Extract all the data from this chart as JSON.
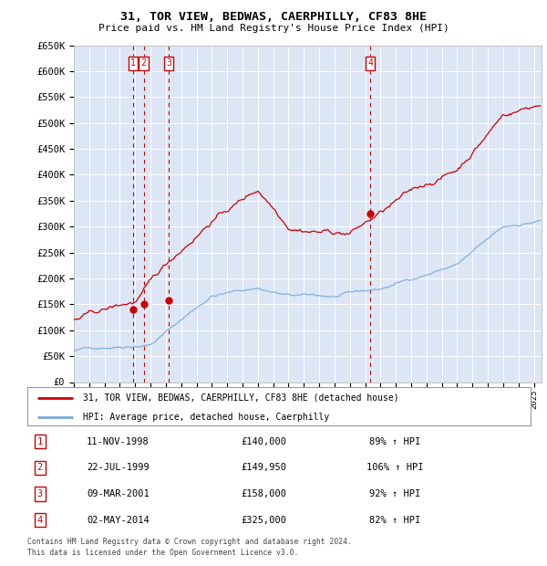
{
  "title": "31, TOR VIEW, BEDWAS, CAERPHILLY, CF83 8HE",
  "subtitle": "Price paid vs. HM Land Registry's House Price Index (HPI)",
  "legend_property": "31, TOR VIEW, BEDWAS, CAERPHILLY, CF83 8HE (detached house)",
  "legend_hpi": "HPI: Average price, detached house, Caerphilly",
  "footer_line1": "Contains HM Land Registry data © Crown copyright and database right 2024.",
  "footer_line2": "This data is licensed under the Open Government Licence v3.0.",
  "ylim": [
    0,
    650000
  ],
  "yticks": [
    0,
    50000,
    100000,
    150000,
    200000,
    250000,
    300000,
    350000,
    400000,
    450000,
    500000,
    550000,
    600000,
    650000
  ],
  "ytick_labels": [
    "£0",
    "£50K",
    "£100K",
    "£150K",
    "£200K",
    "£250K",
    "£300K",
    "£350K",
    "£400K",
    "£450K",
    "£500K",
    "£550K",
    "£600K",
    "£650K"
  ],
  "xlim_start": 1995.0,
  "xlim_end": 2025.5,
  "sales": [
    {
      "label": "1",
      "date_x": 1998.87,
      "price": 140000,
      "date_str": "11-NOV-1998",
      "price_str": "£140,000",
      "pct": "89% ↑ HPI"
    },
    {
      "label": "2",
      "date_x": 1999.56,
      "price": 149950,
      "date_str": "22-JUL-1999",
      "price_str": "£149,950",
      "pct": "106% ↑ HPI"
    },
    {
      "label": "3",
      "date_x": 2001.19,
      "price": 158000,
      "date_str": "09-MAR-2001",
      "price_str": "£158,000",
      "pct": "92% ↑ HPI"
    },
    {
      "label": "4",
      "date_x": 2014.33,
      "price": 325000,
      "date_str": "02-MAY-2014",
      "price_str": "£325,000",
      "pct": "82% ↑ HPI"
    }
  ],
  "background_color": "#dce6f5",
  "plot_bg_color": "#dce6f5",
  "red_line_color": "#cc0000",
  "blue_line_color": "#7aaadd",
  "grid_color": "#ffffff",
  "vline_color": "#cc0000",
  "box_color": "#cc0000",
  "text_color": "#000000"
}
